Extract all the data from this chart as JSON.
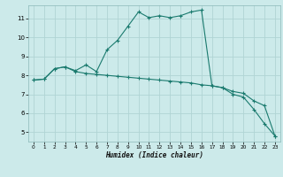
{
  "bg_color": "#cceaea",
  "grid_color": "#b0d4d4",
  "line_color": "#1a7a6e",
  "xlabel": "Humidex (Indice chaleur)",
  "xlim": [
    -0.5,
    23.5
  ],
  "ylim": [
    4.5,
    11.7
  ],
  "yticks": [
    5,
    6,
    7,
    8,
    9,
    10,
    11
  ],
  "xticks": [
    0,
    1,
    2,
    3,
    4,
    5,
    6,
    7,
    8,
    9,
    10,
    11,
    12,
    13,
    14,
    15,
    16,
    17,
    18,
    19,
    20,
    21,
    22,
    23
  ],
  "curve1_x": [
    0,
    1,
    2,
    3,
    4,
    5,
    6,
    7,
    8,
    9,
    10,
    11,
    12,
    13,
    14,
    15,
    16,
    17,
    18,
    19,
    20,
    21,
    22,
    23
  ],
  "curve1_y": [
    7.75,
    7.8,
    8.35,
    8.45,
    8.25,
    8.55,
    8.2,
    9.35,
    9.85,
    10.6,
    11.35,
    11.05,
    11.15,
    11.05,
    11.15,
    11.35,
    11.45,
    7.45,
    7.35,
    7.15,
    7.05,
    6.65,
    6.4,
    4.8
  ],
  "curve2_x": [
    0,
    1,
    2,
    3,
    4,
    5,
    6,
    7,
    8,
    9,
    10,
    11,
    12,
    13,
    14,
    15,
    16,
    17,
    18,
    19,
    20,
    21,
    22,
    23
  ],
  "curve2_y": [
    7.75,
    7.8,
    8.35,
    8.45,
    8.2,
    8.1,
    8.05,
    8.0,
    7.95,
    7.9,
    7.85,
    7.8,
    7.75,
    7.7,
    7.65,
    7.6,
    7.5,
    7.45,
    7.35,
    7.0,
    6.85,
    6.2,
    5.45,
    4.8
  ]
}
